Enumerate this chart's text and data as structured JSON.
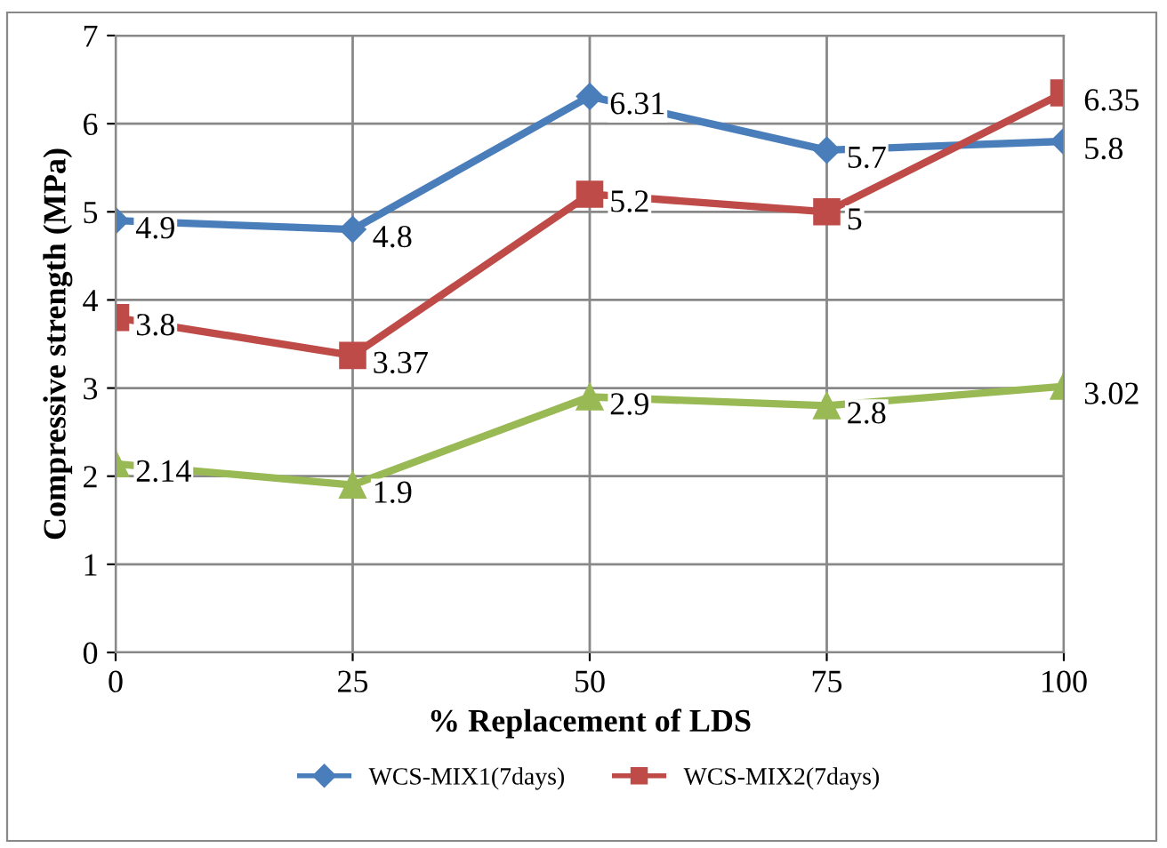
{
  "chart_data": {
    "type": "line",
    "xlabel": "% Replacement of LDS",
    "ylabel": "Compressive strength (MPa)",
    "categories": [
      "0",
      "25",
      "50",
      "75",
      "100"
    ],
    "series": [
      {
        "name": "WCS-MIX1(7days)",
        "color": "#4a7ebb",
        "marker": "diamond",
        "values": [
          4.9,
          4.8,
          6.31,
          5.7,
          5.8
        ]
      },
      {
        "name": "WCS-MIX2(7days)",
        "color": "#be4b48",
        "marker": "square",
        "values": [
          3.8,
          3.37,
          5.2,
          5,
          6.35
        ]
      },
      {
        "color": "#98b954",
        "marker": "triangle",
        "values": [
          2.14,
          1.9,
          2.9,
          2.8,
          3.02
        ]
      }
    ],
    "ylim": [
      0,
      7
    ],
    "yticks": [
      0,
      1,
      2,
      3,
      4,
      5,
      6,
      7
    ],
    "grid": true,
    "legend": "bottom",
    "data_labels": true,
    "line_style": "solid"
  }
}
